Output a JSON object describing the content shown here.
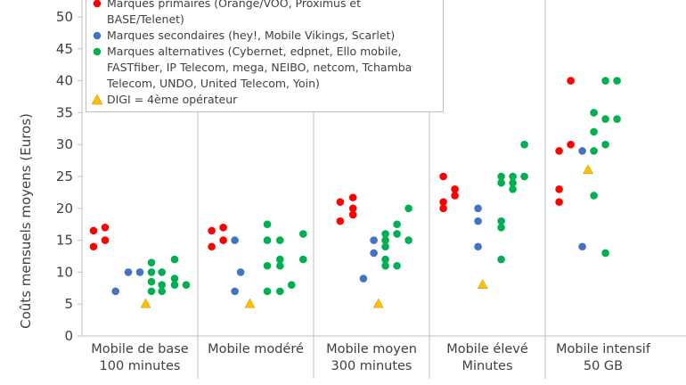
{
  "chart_data": {
    "type": "scatter",
    "y_label": "Coûts mensuels moyens (Euros)",
    "xlim": [
      0,
      5
    ],
    "xticks": [
      {
        "value": 0.5,
        "label": "Mobile de base 100 minutes"
      },
      {
        "value": 1.5,
        "label": "Mobile modéré"
      },
      {
        "value": 2.5,
        "label": "Mobile moyen 300 minutes"
      },
      {
        "value": 3.5,
        "label": "Mobile élevé Minutes"
      },
      {
        "value": 4.5,
        "label": "Mobile intensif 50 GB"
      }
    ],
    "ylim": [
      0,
      50
    ],
    "yticks": [
      0,
      5,
      10,
      15,
      20,
      25,
      30,
      35,
      40,
      45,
      50
    ],
    "series": [
      {
        "name": "Marques primaires (Orange/VOO, Proximus et BASE/Telenet)",
        "color": "#ff0000",
        "marker": "circle",
        "x": [
          0.1,
          0.2,
          0.1,
          0.2,
          1.12,
          1.22,
          1.12,
          1.22,
          2.23,
          2.34,
          2.34,
          2.23,
          2.34,
          3.12,
          3.12,
          3.12,
          3.22,
          3.22,
          4.12,
          4.22,
          4.22,
          4.12,
          4.12
        ],
        "values": [
          16.5,
          17,
          14,
          15,
          16.5,
          17,
          14,
          15,
          21,
          21.7,
          20,
          18,
          19,
          25,
          21,
          20,
          23,
          22,
          29,
          30,
          40,
          23,
          21
        ]
      },
      {
        "name": "Marques secondaires (hey!, Mobile Vikings, Scarlet)",
        "color": "#4472c4",
        "marker": "circle",
        "x": [
          0.29,
          0.4,
          0.5,
          1.32,
          1.37,
          1.32,
          2.43,
          2.52,
          2.52,
          3.42,
          3.42,
          3.42,
          4.32,
          4.32
        ],
        "values": [
          7,
          10,
          10,
          15,
          10,
          7,
          9,
          13,
          15,
          20,
          18,
          14,
          14,
          29
        ]
      },
      {
        "name": "Marques alternatives (Cybernet, edpnet, Ello mobile, FASTfiber, IP Telecom, mega, NEIBO, netcom, Tchamba Telecom, UNDO, United Telecom, Yoin)",
        "color": "#00b050",
        "marker": "circle",
        "x": [
          0.6,
          0.6,
          0.6,
          0.6,
          0.69,
          0.69,
          0.69,
          0.8,
          0.8,
          0.8,
          0.9,
          1.6,
          1.6,
          1.71,
          1.6,
          1.71,
          1.71,
          1.6,
          1.71,
          1.81,
          1.91,
          1.91,
          2.62,
          2.62,
          2.62,
          2.62,
          2.62,
          2.72,
          2.72,
          2.72,
          2.82,
          2.82,
          3.62,
          3.62,
          3.62,
          3.62,
          3.62,
          3.72,
          3.72,
          3.72,
          3.82,
          3.82,
          4.42,
          4.42,
          4.42,
          4.42,
          4.52,
          4.52,
          4.52,
          4.52,
          4.62,
          4.62
        ],
        "values": [
          11.5,
          10,
          8.5,
          7,
          10,
          8,
          7,
          12,
          9,
          8,
          8,
          17.5,
          15,
          15,
          11,
          12,
          11,
          7,
          7,
          8,
          16,
          12,
          14,
          12,
          11,
          16,
          15,
          17.5,
          16,
          11,
          15,
          20,
          18,
          17,
          12,
          25,
          24,
          25,
          24,
          23,
          25,
          30,
          35,
          32,
          29,
          22,
          40,
          34,
          30,
          13,
          40,
          34
        ]
      },
      {
        "name": "DIGI = 4ème opérateur",
        "color": "#ffc000",
        "marker": "triangle",
        "x": [
          0.55,
          1.45,
          2.56,
          3.46,
          4.37
        ],
        "values": [
          5,
          5,
          5,
          8,
          26
        ]
      }
    ]
  }
}
